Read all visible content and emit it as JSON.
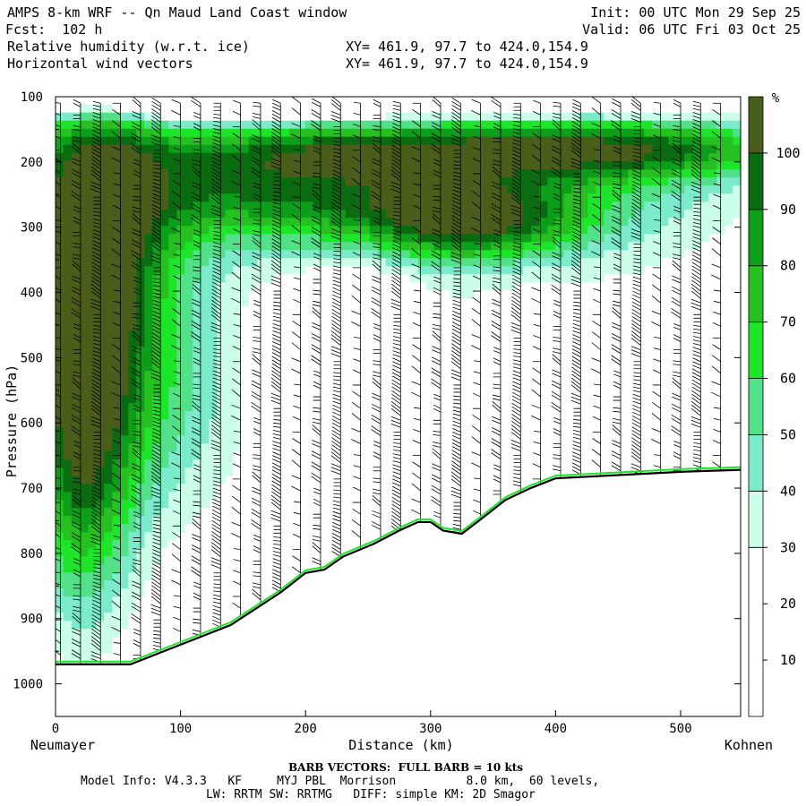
{
  "header": {
    "title": "AMPS 8-km WRF -- Qn Maud Land Coast window",
    "fcst": "Fcst:  102 h",
    "var1": "Relative humidity (w.r.t. ice)",
    "var2": "Horizontal wind vectors",
    "xy1": "XY= 461.9, 97.7 to 424.0,154.9",
    "xy2": "XY= 461.9, 97.7 to 424.0,154.9",
    "init": "Init: 00 UTC Mon 29 Sep 25",
    "valid": "Valid: 06 UTC Fri 03 Oct 25"
  },
  "footer": {
    "barb_note": "BARB VECTORS:  FULL BARB = 10 kts",
    "model_info_1": "Model Info: V4.3.3   KF     MYJ PBL  Morrison          8.0 km,  60 levels,",
    "model_info_2": "LW: RRTM SW: RRTMG   DIFF: simple KM: 2D Smagor"
  },
  "chart_data": {
    "type": "cross-section",
    "title": "Relative humidity (w.r.t. ice) with horizontal wind barbs",
    "xlabel": "Distance (km)",
    "ylabel": "Pressure (hPa)",
    "xlim": [
      0,
      548
    ],
    "ylim": [
      1050,
      100
    ],
    "x_ticks": [
      0,
      100,
      200,
      300,
      400,
      500
    ],
    "y_ticks": [
      100,
      200,
      300,
      400,
      500,
      600,
      700,
      800,
      900,
      1000
    ],
    "x_start_label": "Neumayer",
    "x_end_label": "Kohnen",
    "colorbar": {
      "unit": "%",
      "ticks": [
        10,
        20,
        30,
        40,
        50,
        60,
        70,
        80,
        90,
        100
      ],
      "levels": [
        0,
        30,
        40,
        50,
        60,
        70,
        80,
        90,
        100,
        110
      ],
      "colors": [
        "#ffffff",
        "#cbffe9",
        "#7cebcc",
        "#52e089",
        "#1de52a",
        "#27c021",
        "#0d9e1a",
        "#0a6b11",
        "#4a5e1b"
      ]
    },
    "terrain_surface_hpa": {
      "distance_km": [
        0,
        40,
        60,
        100,
        140,
        180,
        200,
        215,
        230,
        255,
        275,
        290,
        300,
        310,
        325,
        340,
        360,
        380,
        400,
        420,
        450,
        500,
        548
      ],
      "pressure_hpa": [
        970,
        970,
        970,
        940,
        910,
        860,
        830,
        825,
        805,
        785,
        765,
        752,
        752,
        765,
        770,
        748,
        718,
        700,
        685,
        683,
        680,
        675,
        672
      ]
    }
  }
}
